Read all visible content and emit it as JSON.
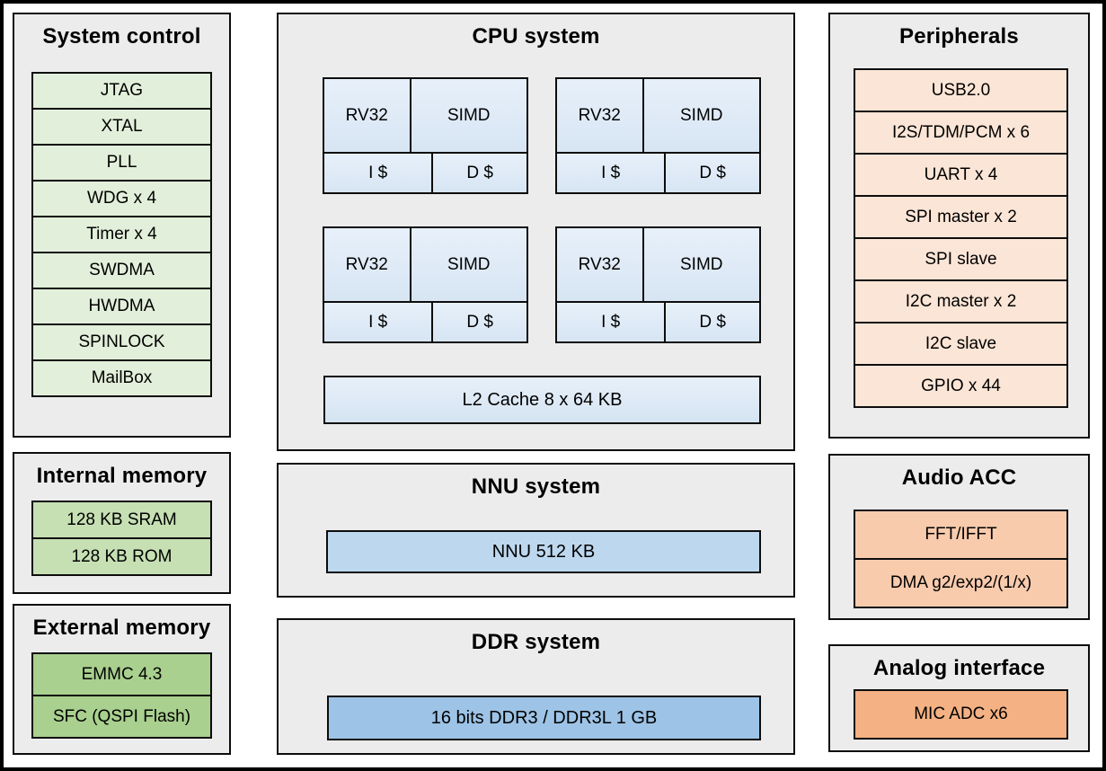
{
  "colors": {
    "background": "#ffffff",
    "panel_bg": "#ececec",
    "border": "#0d0d0d",
    "green_light": "#e2efda",
    "green_mid": "#c6e0b4",
    "green_dark": "#a9d08e",
    "blue_light": "#dce9f6",
    "blue_mid": "#bdd7ee",
    "blue_dark": "#9dc3e6",
    "peach_light": "#fbe5d6",
    "peach_mid": "#f8cbad",
    "peach_dark": "#f4b183"
  },
  "panels": {
    "system_control": {
      "title": "System control",
      "items": [
        "JTAG",
        "XTAL",
        "PLL",
        "WDG x 4",
        "Timer x 4",
        "SWDMA",
        "HWDMA",
        "SPINLOCK",
        "MailBox"
      ]
    },
    "internal_memory": {
      "title": "Internal memory",
      "items": [
        "128 KB SRAM",
        "128 KB ROM"
      ]
    },
    "external_memory": {
      "title": "External memory",
      "items": [
        "EMMC 4.3",
        "SFC (QSPI Flash)"
      ]
    },
    "cpu_system": {
      "title": "CPU system",
      "core_count": 4,
      "core": {
        "cpu": "RV32",
        "simd": "SIMD",
        "icache": "I $",
        "dcache": "D $"
      },
      "l2_cache": "L2 Cache 8 x 64 KB"
    },
    "nnu_system": {
      "title": "NNU system",
      "items": [
        "NNU 512 KB"
      ]
    },
    "ddr_system": {
      "title": "DDR system",
      "items": [
        "16 bits DDR3 / DDR3L 1 GB"
      ]
    },
    "peripherals": {
      "title": "Peripherals",
      "items": [
        "USB2.0",
        "I2S/TDM/PCM x 6",
        "UART x 4",
        "SPI master x 2",
        "SPI slave",
        "I2C master x 2",
        "I2C slave",
        "GPIO x 44"
      ]
    },
    "audio_acc": {
      "title": "Audio ACC",
      "items": [
        "FFT/IFFT",
        "DMA g2/exp2/(1/x)"
      ]
    },
    "analog_interface": {
      "title": "Analog interface",
      "items": [
        "MIC ADC x6"
      ]
    }
  }
}
